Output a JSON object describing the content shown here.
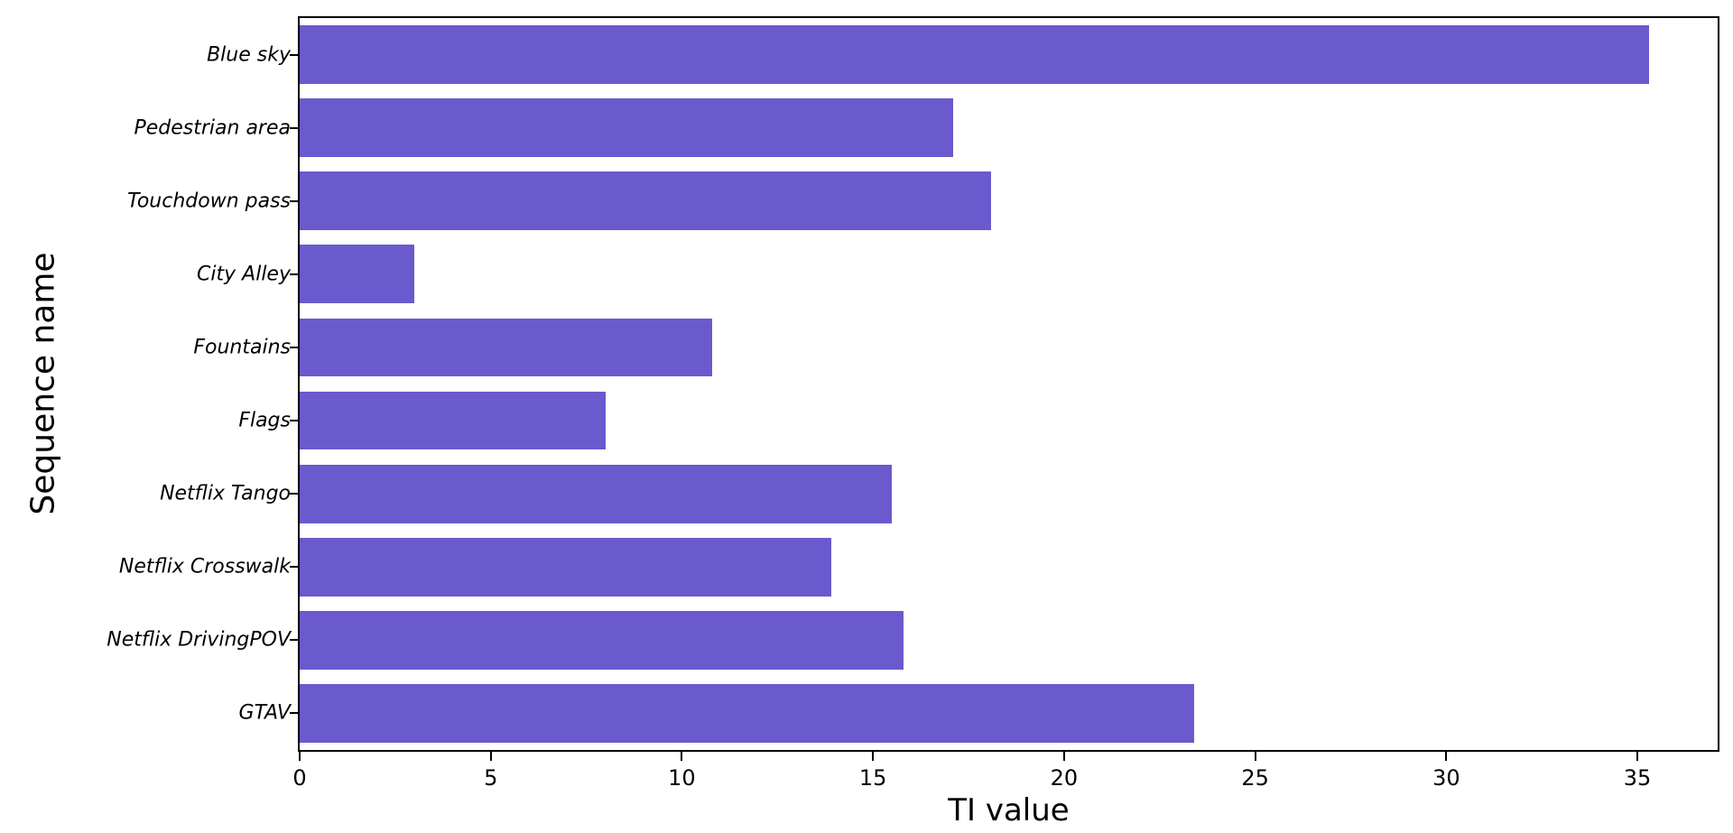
{
  "chart_data": {
    "type": "bar",
    "orientation": "horizontal",
    "title": "",
    "xlabel": "TI value",
    "ylabel": "Sequence name",
    "categories": [
      "Blue sky",
      "Pedestrian area",
      "Touchdown pass",
      "City Alley",
      "Fountains",
      "Flags",
      "Netflix Tango",
      "Netflix Crosswalk",
      "Netflix DrivingPOV",
      "GTAV"
    ],
    "values": [
      35.3,
      17.1,
      18.1,
      3.0,
      10.8,
      8.0,
      15.5,
      13.9,
      15.8,
      23.4
    ],
    "xlim": [
      0,
      37.1
    ],
    "xticks": [
      0,
      5,
      10,
      15,
      20,
      25,
      30,
      35
    ],
    "bar_color": "#6A5ACD",
    "grid": false,
    "legend": "none",
    "category_label_style": "italic"
  }
}
